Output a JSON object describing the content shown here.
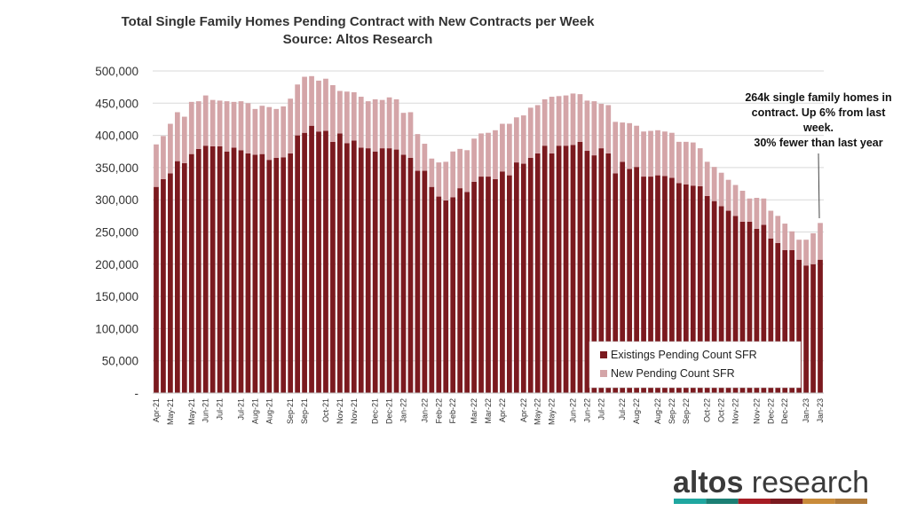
{
  "chart_data": {
    "type": "bar",
    "stacked": true,
    "title": "Total Single Family Homes Pending Contract with New Contracts per Week",
    "subtitle": "Source: Altos Research",
    "ylim": [
      0,
      500000
    ],
    "y_ticks": [
      "-",
      "50,000",
      "100,000",
      "150,000",
      "200,000",
      "250,000",
      "300,000",
      "350,000",
      "400,000",
      "450,000",
      "500,000"
    ],
    "x_tick_labels": [
      "Apr-21",
      "May-21",
      "May-21",
      "Jun-21",
      "Jul-21",
      "Jul-21",
      "Aug-21",
      "Aug-21",
      "Sep-21",
      "Sep-21",
      "Oct-21",
      "Nov-21",
      "Nov-21",
      "Dec-21",
      "Dec-21",
      "Jan-22",
      "Jan-22",
      "Feb-22",
      "Feb-22",
      "Mar-22",
      "Mar-22",
      "Apr-22",
      "Apr-22",
      "May-22",
      "May-22",
      "Jun-22",
      "Jun-22",
      "Jul-22",
      "Jul-22",
      "Aug-22",
      "Aug-22",
      "Sep-22",
      "Sep-22",
      "Oct-22",
      "Oct-22",
      "Nov-22",
      "Nov-22",
      "Dec-22",
      "Dec-22",
      "Jan-23",
      "Jan-23"
    ],
    "grid": true,
    "legend_position": "bottom-right",
    "series": [
      {
        "name": "Existings Pending Count SFR",
        "color": "#7b1a1f",
        "values": [
          320000,
          332000,
          341000,
          360000,
          357000,
          371000,
          379000,
          384000,
          383000,
          383000,
          375000,
          381000,
          377000,
          372000,
          370000,
          371000,
          362000,
          365000,
          366000,
          372000,
          400000,
          404000,
          415000,
          406000,
          407000,
          390000,
          403000,
          388000,
          392000,
          381000,
          380000,
          375000,
          380000,
          380000,
          378000,
          370000,
          365000,
          345000,
          345000,
          320000,
          305000,
          299000,
          304000,
          318000,
          312000,
          328000,
          336000,
          336000,
          332000,
          344000,
          338000,
          358000,
          356000,
          365000,
          372000,
          384000,
          372000,
          384000,
          384000,
          385000,
          390000,
          376000,
          369000,
          380000,
          372000,
          341000,
          359000,
          348000,
          351000,
          336000,
          336000,
          338000,
          337000,
          334000,
          326000,
          324000,
          322000,
          321000,
          306000,
          298000,
          290000,
          283000,
          275000,
          266000,
          266000,
          255000,
          261000,
          240000,
          233000,
          222000,
          222000,
          207000,
          198000,
          200000,
          207000
        ]
      },
      {
        "name": "New Pending Count SFR",
        "color": "#d4a5a8",
        "values": [
          66000,
          67000,
          77000,
          76000,
          72000,
          81000,
          74000,
          78000,
          72000,
          71000,
          78000,
          71000,
          76000,
          78000,
          71000,
          75000,
          82000,
          76000,
          79000,
          85000,
          79000,
          87000,
          77000,
          79000,
          81000,
          88000,
          66000,
          80000,
          75000,
          79000,
          73000,
          81000,
          75000,
          79000,
          78000,
          65000,
          71000,
          57000,
          42000,
          44000,
          53000,
          60000,
          71000,
          61000,
          65000,
          67000,
          67000,
          68000,
          76000,
          74000,
          80000,
          70000,
          75000,
          78000,
          75000,
          72000,
          88000,
          77000,
          78000,
          80000,
          74000,
          78000,
          84000,
          69000,
          75000,
          80000,
          61000,
          71000,
          64000,
          70000,
          71000,
          70000,
          69000,
          70000,
          64000,
          66000,
          67000,
          59000,
          53000,
          53000,
          52000,
          48000,
          48000,
          48000,
          36000,
          48000,
          41000,
          43000,
          42000,
          41000,
          29000,
          31000,
          40000,
          48000,
          57000
        ]
      }
    ],
    "annotation": {
      "lines": [
        "264k single family homes in",
        "contract. Up 6% from last",
        "week.",
        "30% fewer than last year"
      ]
    },
    "xlabel": "",
    "ylabel": ""
  },
  "logo": {
    "text_bold": "altos",
    "text_light": " research",
    "stripe_colors": [
      "#1fa7a0",
      "#1b7f74",
      "#a61c24",
      "#7b1a1f",
      "#c98b3a",
      "#b07a3a"
    ]
  }
}
